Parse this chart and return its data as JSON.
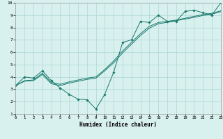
{
  "title": "",
  "xlabel": "Humidex (Indice chaleur)",
  "xlim": [
    0,
    23
  ],
  "ylim": [
    1,
    10
  ],
  "xticks": [
    0,
    1,
    2,
    3,
    4,
    5,
    6,
    7,
    8,
    9,
    10,
    11,
    12,
    13,
    14,
    15,
    16,
    17,
    18,
    19,
    20,
    21,
    22,
    23
  ],
  "yticks": [
    1,
    2,
    3,
    4,
    5,
    6,
    7,
    8,
    9,
    10
  ],
  "bg_color": "#d8f0ee",
  "line_color": "#1a7a6e",
  "grid_color": "#aed8d4",
  "line1": {
    "x": [
      0,
      1,
      2,
      3,
      4,
      5,
      6,
      7,
      8,
      9,
      10,
      11,
      12,
      13,
      14,
      15,
      16,
      17,
      18,
      19,
      20,
      21,
      22,
      23
    ],
    "y": [
      3.3,
      4.0,
      3.9,
      4.5,
      3.7,
      3.1,
      2.6,
      2.2,
      2.15,
      1.4,
      2.6,
      4.4,
      6.8,
      7.0,
      8.5,
      8.4,
      9.0,
      8.5,
      8.5,
      9.3,
      9.4,
      9.2,
      9.0,
      10.0
    ]
  },
  "line2": {
    "x": [
      0,
      1,
      2,
      3,
      4,
      5,
      6,
      7,
      8,
      9,
      10,
      11,
      12,
      13,
      14,
      15,
      16,
      17,
      18,
      19,
      20,
      21,
      22,
      23
    ],
    "y": [
      3.3,
      3.7,
      3.75,
      4.3,
      3.55,
      3.4,
      3.6,
      3.75,
      3.9,
      4.0,
      4.6,
      5.3,
      6.1,
      6.8,
      7.5,
      8.1,
      8.4,
      8.5,
      8.6,
      8.75,
      8.9,
      9.05,
      9.15,
      9.35
    ]
  },
  "line3": {
    "x": [
      0,
      1,
      2,
      3,
      4,
      5,
      6,
      7,
      8,
      9,
      10,
      11,
      12,
      13,
      14,
      15,
      16,
      17,
      18,
      19,
      20,
      21,
      22,
      23
    ],
    "y": [
      3.3,
      3.65,
      3.7,
      4.2,
      3.45,
      3.3,
      3.5,
      3.65,
      3.8,
      3.9,
      4.5,
      5.15,
      5.95,
      6.65,
      7.35,
      7.95,
      8.3,
      8.42,
      8.55,
      8.68,
      8.82,
      8.97,
      9.08,
      9.28
    ]
  }
}
